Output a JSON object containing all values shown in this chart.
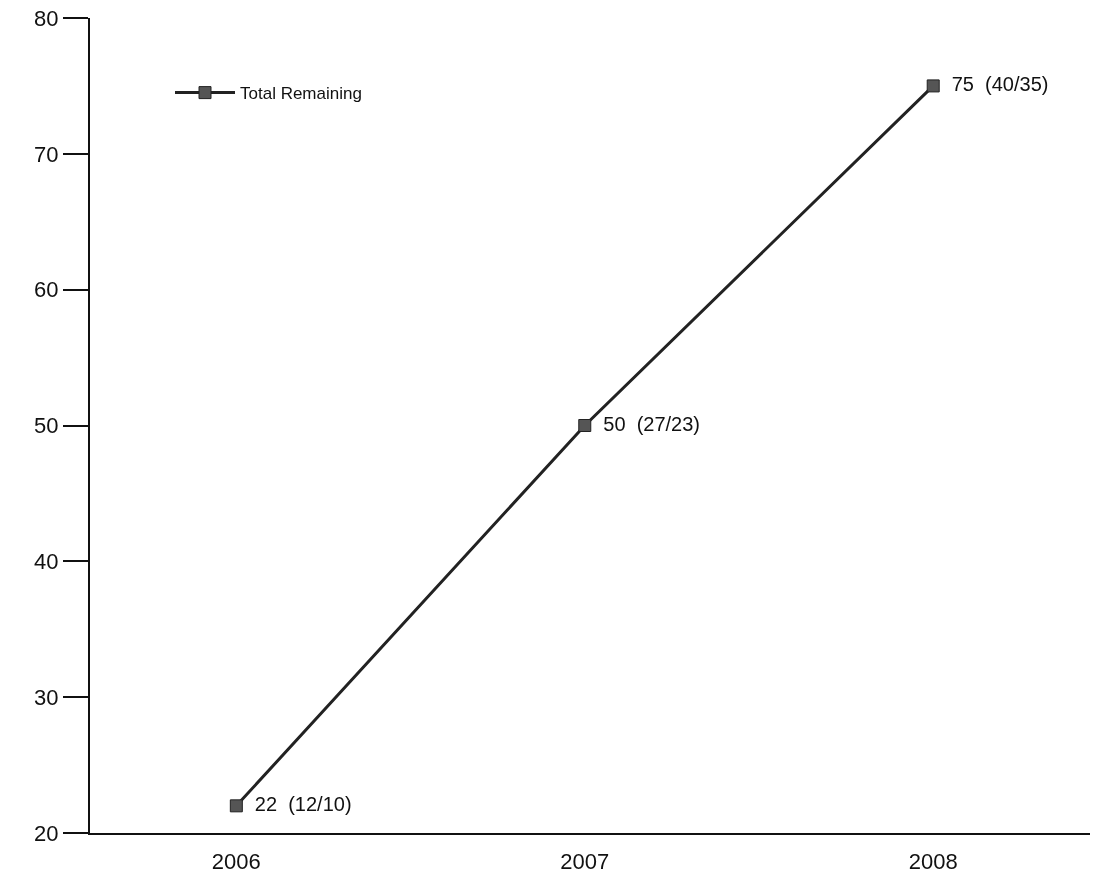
{
  "chart_data": {
    "type": "line",
    "categories": [
      "2006",
      "2007",
      "2008"
    ],
    "series": [
      {
        "name": "Total Remaining",
        "color": "#222222",
        "values": [
          22,
          50,
          75
        ],
        "value_labels": [
          "22  (12/10)",
          "50  (27/23)",
          "75  (40/35)"
        ]
      }
    ],
    "ylim": [
      20,
      80
    ],
    "yticks": [
      20,
      30,
      40,
      50,
      60,
      70,
      80
    ],
    "grid": false,
    "legend": "top left",
    "marker": "square",
    "line_style": "solid"
  }
}
